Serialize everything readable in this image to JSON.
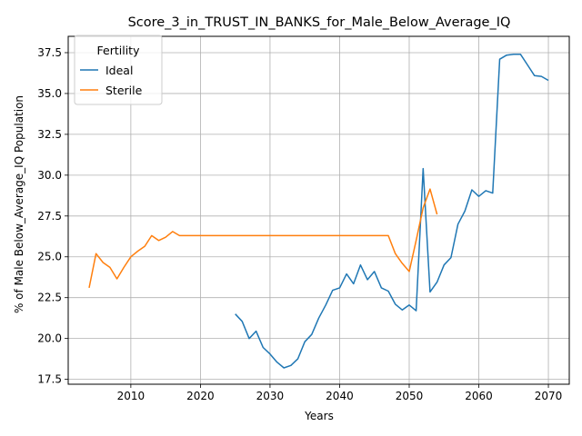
{
  "chart_data": {
    "type": "line",
    "title": "Score_3_in_TRUST_IN_BANKS_for_Male_Below_Average_IQ",
    "xlabel": "Years",
    "ylabel": "% of Male Below_Average_IQ Population",
    "xlim": [
      2001,
      2073
    ],
    "ylim": [
      17.2,
      38.5
    ],
    "xticks": [
      2010,
      2020,
      2030,
      2040,
      2050,
      2060,
      2070
    ],
    "yticks": [
      17.5,
      20.0,
      22.5,
      25.0,
      27.5,
      30.0,
      32.5,
      35.0,
      37.5
    ],
    "grid": true,
    "legend": {
      "title": "Fertility",
      "placement": "top-left"
    },
    "series": [
      {
        "name": "Ideal",
        "color": "#1f77b4",
        "x": [
          2025,
          2026,
          2027,
          2028,
          2029,
          2030,
          2031,
          2032,
          2033,
          2034,
          2035,
          2036,
          2037,
          2038,
          2039,
          2040,
          2041,
          2042,
          2043,
          2044,
          2045,
          2046,
          2047,
          2048,
          2049,
          2050,
          2051,
          2052,
          2053,
          2054,
          2055,
          2056,
          2057,
          2058,
          2059,
          2060,
          2061,
          2062,
          2063,
          2064,
          2065,
          2066,
          2067,
          2068,
          2069,
          2070
        ],
        "y": [
          21.5,
          21.05,
          20.0,
          20.45,
          19.45,
          19.05,
          18.55,
          18.2,
          18.35,
          18.75,
          19.8,
          20.25,
          21.25,
          22.05,
          22.95,
          23.1,
          23.95,
          23.35,
          24.5,
          23.6,
          24.1,
          23.1,
          22.9,
          22.1,
          21.75,
          22.05,
          21.7,
          30.4,
          22.85,
          23.45,
          24.5,
          24.95,
          27.0,
          27.8,
          29.1,
          28.7,
          29.05,
          28.9,
          37.1,
          37.35,
          37.4,
          37.4,
          36.75,
          36.1,
          36.05,
          35.8
        ]
      },
      {
        "name": "Sterile",
        "color": "#ff7f0e",
        "x": [
          2004,
          2005,
          2006,
          2007,
          2008,
          2009,
          2010,
          2011,
          2012,
          2013,
          2014,
          2015,
          2016,
          2017,
          2018,
          2019,
          2020,
          2021,
          2022,
          2023,
          2024,
          2025,
          2026,
          2027,
          2028,
          2029,
          2030,
          2031,
          2032,
          2033,
          2034,
          2035,
          2036,
          2037,
          2038,
          2039,
          2040,
          2041,
          2042,
          2043,
          2044,
          2045,
          2046,
          2047,
          2048,
          2049,
          2050,
          2051,
          2052,
          2053,
          2054
        ],
        "y": [
          23.1,
          25.2,
          24.65,
          24.35,
          23.65,
          24.35,
          25.0,
          25.35,
          25.65,
          26.3,
          26.0,
          26.2,
          26.55,
          26.3,
          26.3,
          26.3,
          26.3,
          26.3,
          26.3,
          26.3,
          26.3,
          26.3,
          26.3,
          26.3,
          26.3,
          26.3,
          26.3,
          26.3,
          26.3,
          26.3,
          26.3,
          26.3,
          26.3,
          26.3,
          26.3,
          26.3,
          26.3,
          26.3,
          26.3,
          26.3,
          26.3,
          26.3,
          26.3,
          26.3,
          25.2,
          24.6,
          24.1,
          26.0,
          28.0,
          29.15,
          27.6
        ]
      }
    ]
  }
}
